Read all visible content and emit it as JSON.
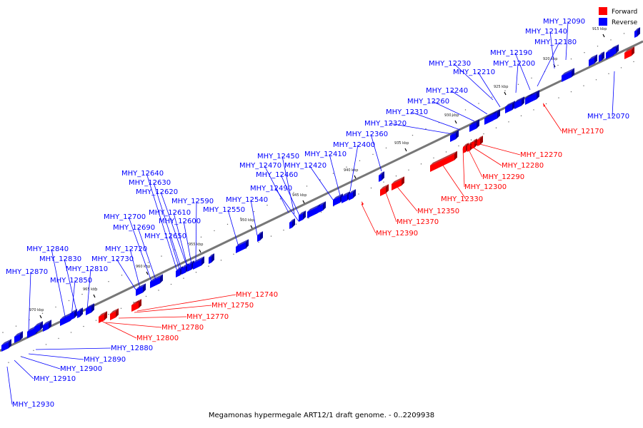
{
  "caption": "Megamonas hypermegale ART12/1 draft genome. - 0..2209938",
  "colors": {
    "forward": "#ff0000",
    "reverse": "#0000ff",
    "backbone": "#777777"
  },
  "legend": [
    {
      "label": "Forward",
      "color": "#ff0000"
    },
    {
      "label": "Reverse",
      "color": "#0000ff"
    }
  ],
  "ticks": [
    "915 kbp",
    "920 kbp",
    "925 kbp",
    "930 kbp",
    "935 kbp",
    "940 kbp",
    "945 kbp",
    "950 kbp",
    "955 kbp",
    "960 kbp",
    "965 kbp",
    "970 kbp"
  ],
  "genes": {
    "forward": [
      "MHY_12170",
      "MHY_12270",
      "MHY_12280",
      "MHY_12290",
      "MHY_12300",
      "MHY_12330",
      "MHY_12350",
      "MHY_12370",
      "MHY_12390",
      "MHY_12740",
      "MHY_12750",
      "MHY_12770",
      "MHY_12780",
      "MHY_12800"
    ],
    "reverse": [
      "MHY_12090",
      "MHY_12140",
      "MHY_12180",
      "MHY_12190",
      "MHY_12200",
      "MHY_12230",
      "MHY_12210",
      "MHY_12240",
      "MHY_12260",
      "MHY_12310",
      "MHY_12320",
      "MHY_12360",
      "MHY_12400",
      "MHY_12410",
      "MHY_12450",
      "MHY_12420",
      "MHY_12470",
      "MHY_12460",
      "MHY_12490",
      "MHY_12540",
      "MHY_12550",
      "MHY_12640",
      "MHY_12630",
      "MHY_12620",
      "MHY_12590",
      "MHY_12610",
      "MHY_12600",
      "MHY_12650",
      "MHY_12700",
      "MHY_12690",
      "MHY_12720",
      "MHY_12730",
      "MHY_12840",
      "MHY_12830",
      "MHY_12810",
      "MHY_12870",
      "MHY_12850",
      "MHY_12070",
      "MHY_12880",
      "MHY_12890",
      "MHY_12900",
      "MHY_12910",
      "MHY_12930"
    ]
  }
}
